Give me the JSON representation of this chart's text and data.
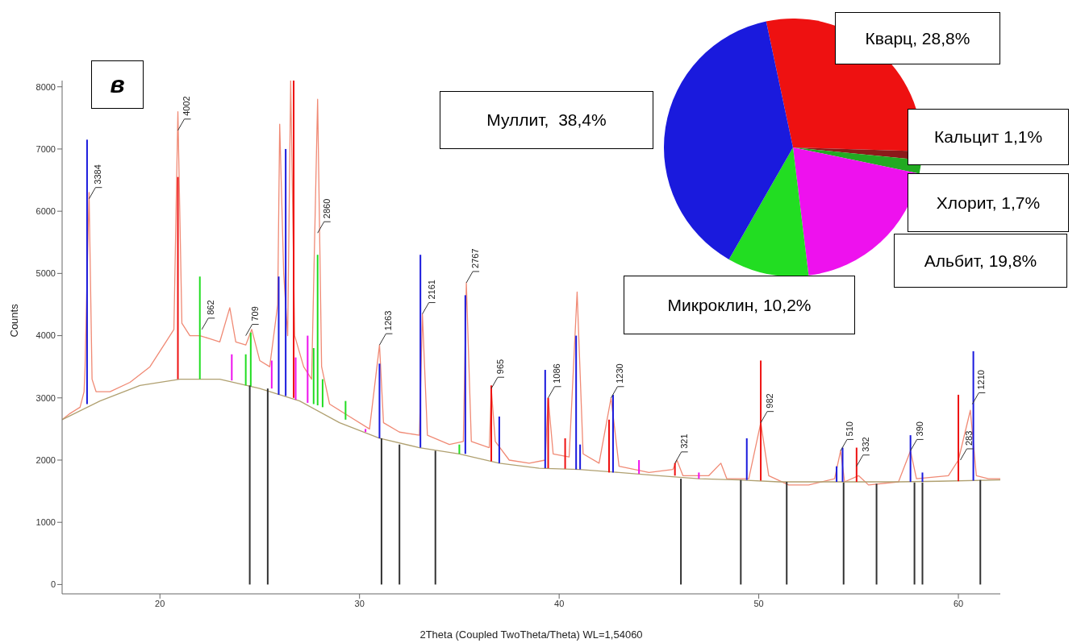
{
  "chart_data": [
    {
      "type": "line",
      "xlabel": "2Theta (Coupled TwoTheta/Theta) WL=1,54060",
      "ylabel": "Counts",
      "xlim": [
        15.1,
        62.1
      ],
      "xticks": [
        20,
        30,
        40,
        50,
        60
      ],
      "ylim": [
        -150,
        8100
      ],
      "yticks": [
        0,
        1000,
        2000,
        3000,
        4000,
        5000,
        6000,
        7000,
        8000
      ],
      "marker": "none",
      "annotations": [
        "в",
        {
          "text": "3384",
          "x": 16.45,
          "y": 6200
        },
        {
          "text": "4002",
          "x": 20.9,
          "y": 7300
        },
        {
          "text": "862",
          "x": 22.1,
          "y": 4100
        },
        {
          "text": "709",
          "x": 24.3,
          "y": 4000
        },
        {
          "text": "2860",
          "x": 27.9,
          "y": 5650
        },
        {
          "text": "1263",
          "x": 31.0,
          "y": 3850
        },
        {
          "text": "2161",
          "x": 33.15,
          "y": 4350
        },
        {
          "text": "2767",
          "x": 35.35,
          "y": 4850
        },
        {
          "text": "965",
          "x": 36.6,
          "y": 3150
        },
        {
          "text": "1086",
          "x": 39.45,
          "y": 3000
        },
        {
          "text": "1230",
          "x": 42.6,
          "y": 3000
        },
        {
          "text": "321",
          "x": 45.8,
          "y": 1950
        },
        {
          "text": "982",
          "x": 50.1,
          "y": 2600
        },
        {
          "text": "510",
          "x": 54.1,
          "y": 2150
        },
        {
          "text": "332",
          "x": 54.9,
          "y": 1900
        },
        {
          "text": "390",
          "x": 57.6,
          "y": 2150
        },
        {
          "text": "283",
          "x": 60.1,
          "y": 2000
        },
        {
          "text": "1210",
          "x": 60.7,
          "y": 2900
        }
      ],
      "series": [
        {
          "color": "#f08a75",
          "x": [
            15.1,
            15.5,
            16.0,
            16.2,
            16.25,
            16.45,
            16.6,
            16.8,
            17.5,
            18.5,
            19.5,
            20.3,
            20.7,
            20.9,
            21.1,
            21.5,
            22.0,
            22.5,
            23.0,
            23.5,
            23.8,
            24.3,
            24.6,
            25.0,
            25.5,
            25.9,
            26.0,
            26.2,
            26.4,
            26.55,
            26.75,
            27.2,
            27.6,
            27.9,
            28.1,
            28.5,
            29.5,
            30.5,
            31.0,
            31.2,
            32.0,
            33.0,
            33.15,
            33.4,
            34.5,
            35.2,
            35.35,
            35.6,
            36.5,
            36.6,
            36.8,
            37.5,
            38.5,
            39.3,
            39.45,
            39.7,
            40.5,
            40.9,
            41.2,
            42.0,
            42.6,
            43.0,
            44.5,
            45.7,
            45.9,
            46.2,
            47.5,
            48.1,
            48.4,
            49.5,
            50.1,
            50.5,
            51.5,
            52.5,
            53.8,
            54.1,
            54.3,
            55.0,
            55.5,
            57.0,
            57.6,
            57.9,
            59.5,
            60.0,
            60.6,
            60.9,
            61.5,
            62.1
          ],
          "values": [
            2650,
            2750,
            2850,
            3100,
            3500,
            6300,
            3300,
            3100,
            3100,
            3250,
            3500,
            3900,
            4100,
            7600,
            4200,
            4000,
            4000,
            3950,
            3900,
            4450,
            3900,
            3850,
            4100,
            3600,
            3500,
            4500,
            7400,
            5000,
            4000,
            8100,
            4000,
            3500,
            3300,
            7800,
            3500,
            2900,
            2700,
            2500,
            3850,
            2600,
            2450,
            2400,
            4350,
            2400,
            2250,
            2300,
            4850,
            2300,
            2200,
            3150,
            2300,
            2000,
            1950,
            2000,
            3000,
            2100,
            2050,
            4700,
            2100,
            1950,
            3000,
            1900,
            1800,
            1850,
            2000,
            1750,
            1750,
            1950,
            1700,
            1700,
            2600,
            1750,
            1600,
            1600,
            1700,
            2150,
            1650,
            1750,
            1600,
            1650,
            2150,
            1700,
            1750,
            2000,
            2800,
            1750,
            1700,
            1700
          ]
        },
        {
          "color": "#b0a070",
          "x": [
            15.1,
            17,
            19,
            21,
            23,
            25,
            27,
            29,
            31,
            33,
            35,
            37,
            39,
            41,
            43,
            45,
            47,
            49,
            51,
            53,
            55,
            57,
            59,
            62.1
          ],
          "values": [
            2650,
            2950,
            3200,
            3300,
            3300,
            3150,
            2950,
            2600,
            2350,
            2200,
            2100,
            1950,
            1870,
            1850,
            1800,
            1750,
            1700,
            1680,
            1650,
            1650,
            1650,
            1650,
            1660,
            1680
          ]
        },
        {
          "type": "bar",
          "color": "#1a1add",
          "x": [
            16.35,
            25.95,
            26.3,
            31.0,
            33.05,
            35.3,
            37.0,
            39.3,
            40.85,
            41.05,
            42.7,
            49.4,
            53.9,
            54.2,
            57.6,
            58.2,
            60.75
          ],
          "base": [
            2900,
            3050,
            3030,
            2350,
            2200,
            2100,
            1950,
            1870,
            1850,
            1850,
            1800,
            1680,
            1650,
            1650,
            1650,
            1650,
            1670
          ],
          "values": [
            4250,
            1900,
            3970,
            1200,
            3100,
            2550,
            750,
            1580,
            2150,
            400,
            1250,
            670,
            250,
            550,
            750,
            150,
            2080
          ]
        },
        {
          "type": "bar",
          "color": "#ee1111",
          "x": [
            20.9,
            26.7,
            36.6,
            39.45,
            40.3,
            42.5,
            45.8,
            50.1,
            54.9,
            60.0
          ],
          "base": [
            3300,
            3000,
            1980,
            1870,
            1860,
            1800,
            1750,
            1670,
            1650,
            1660
          ],
          "values": [
            3250,
            5100,
            1220,
            1130,
            490,
            850,
            200,
            1930,
            550,
            1390
          ]
        },
        {
          "type": "bar",
          "color": "#22dd22",
          "x": [
            22.0,
            24.3,
            24.55,
            27.7,
            27.9,
            28.15,
            29.3,
            35.0
          ],
          "base": [
            3300,
            3200,
            3180,
            2900,
            2880,
            2850,
            2650,
            2100
          ],
          "values": [
            1650,
            500,
            870,
            900,
            2420,
            450,
            300,
            150
          ]
        },
        {
          "type": "bar",
          "color": "#ee11ee",
          "x": [
            23.6,
            25.6,
            26.8,
            27.4,
            30.3,
            44.0,
            47.0
          ],
          "base": [
            3280,
            3150,
            2970,
            2920,
            2450,
            1780,
            1700
          ],
          "values": [
            420,
            450,
            680,
            1080,
            50,
            220,
            100
          ]
        },
        {
          "type": "bar",
          "color": "#333333",
          "x": [
            24.5,
            25.4,
            31.1,
            32.0,
            33.8,
            46.1,
            49.1,
            51.4,
            54.25,
            55.9,
            57.8,
            58.2,
            61.1
          ],
          "values": [
            3200,
            3150,
            2350,
            2250,
            2150,
            1700,
            1680,
            1650,
            1640,
            1620,
            1640,
            1640,
            1680
          ]
        }
      ]
    },
    {
      "type": "pie",
      "legend": false,
      "categories": [
        "Кварц, 28,8%",
        "Кальцит 1,1%",
        "Хлорит, 1,7%",
        "Альбит, 19,8%",
        "Микроклин, 10,2%",
        "Муллит,  38,4%"
      ],
      "values": [
        28.8,
        1.1,
        1.7,
        19.8,
        10.2,
        38.4
      ],
      "colors": [
        "#ee1111",
        "#8b1a1a",
        "#22aa22",
        "#ee11ee",
        "#22dd22",
        "#1a1add"
      ]
    }
  ]
}
